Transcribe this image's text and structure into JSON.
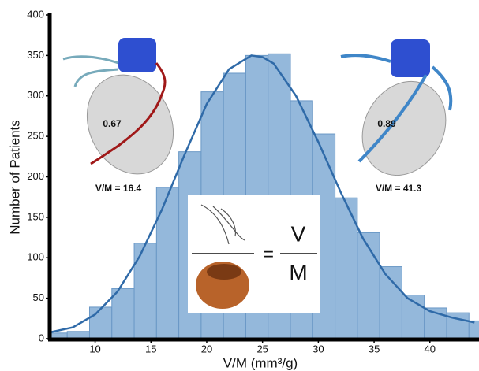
{
  "chart_data": {
    "type": "histogram",
    "xlabel": "V/M (mm³/g)",
    "ylabel": "Number of Patients",
    "bins": [
      5.5,
      7.5,
      9.5,
      11.5,
      13.5,
      15.5,
      17.5,
      19.5,
      21.5,
      23.5,
      25.5,
      27.5,
      29.5,
      31.5,
      33.5,
      35.5,
      37.5,
      39.5,
      41.5,
      43.5,
      45.5
    ],
    "counts": [
      7,
      9,
      39,
      62,
      118,
      187,
      231,
      305,
      328,
      350,
      352,
      294,
      253,
      174,
      131,
      89,
      54,
      38,
      32,
      22
    ],
    "color": "#94b8db",
    "edgecolor": "#6a98c6",
    "fit": {
      "color": "#2f6aa8",
      "x": [
        6,
        8,
        10,
        12,
        14,
        16,
        18,
        20,
        22,
        24,
        25,
        26,
        28,
        30,
        32,
        34,
        36,
        38,
        40,
        42,
        44
      ],
      "values": [
        8,
        14,
        30,
        58,
        102,
        160,
        227,
        290,
        333,
        350,
        348,
        340,
        300,
        243,
        181,
        124,
        80,
        50,
        34,
        26,
        20
      ]
    },
    "xlim": [
      6,
      44.4
    ],
    "ylim": [
      0,
      400
    ],
    "xticks": [
      10,
      15,
      20,
      25,
      30,
      35,
      40
    ],
    "yticks": [
      0,
      50,
      100,
      150,
      200,
      250,
      300,
      350,
      400
    ],
    "annotations": [
      "0.67",
      "V/M = 16.4",
      "0.89",
      "V/M = 41.3",
      "V",
      "=",
      "M"
    ]
  }
}
